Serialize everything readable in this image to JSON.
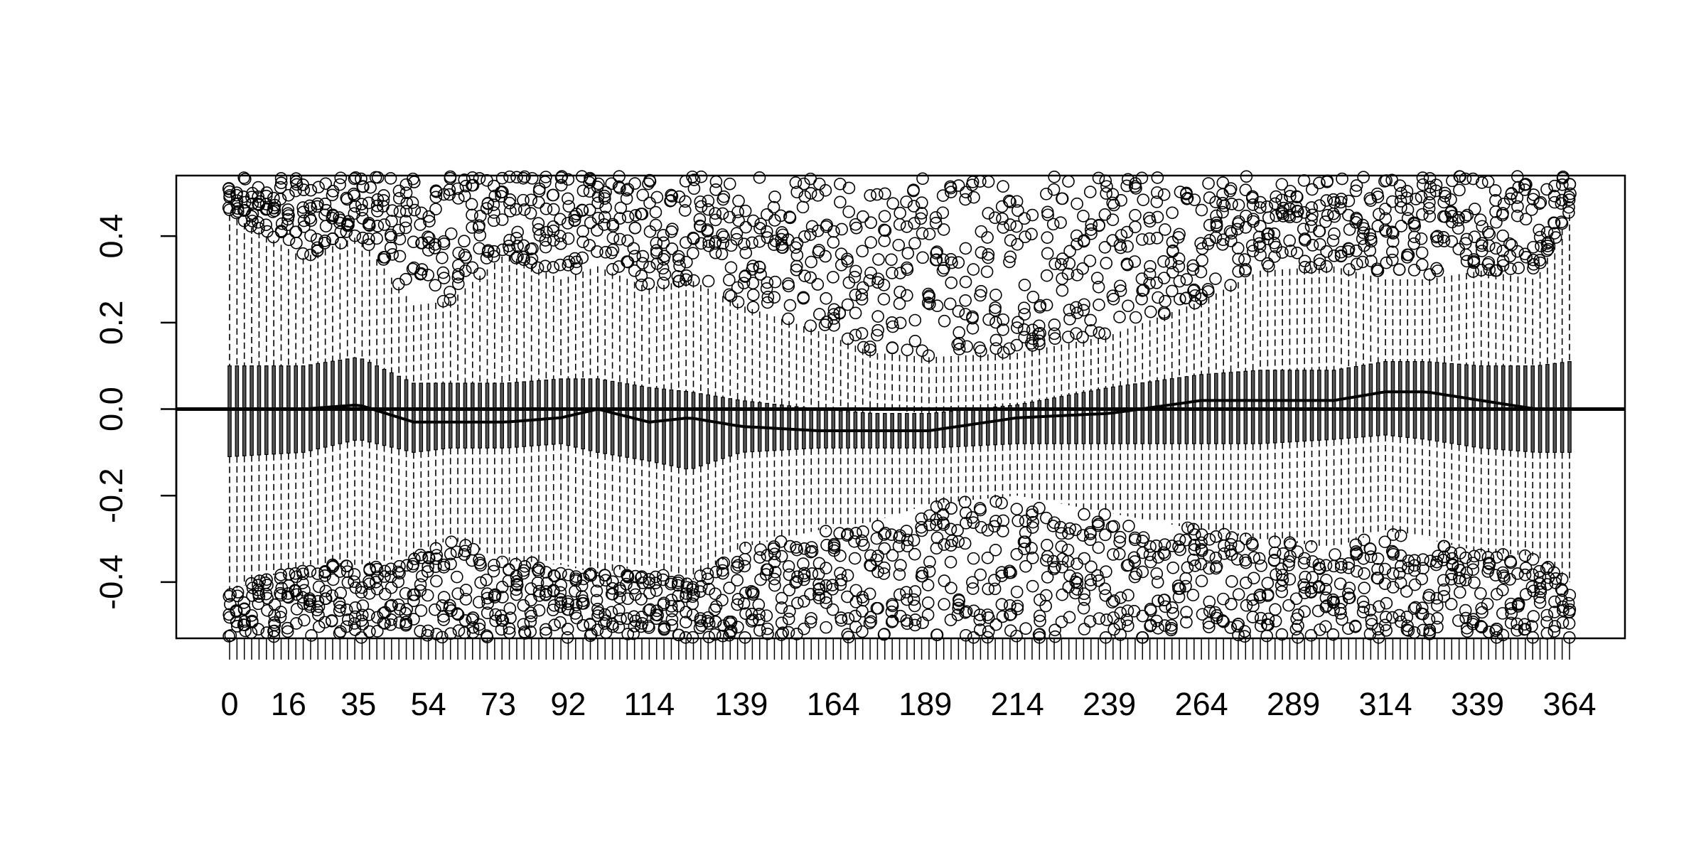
{
  "chart_data": {
    "type": "box",
    "title": "",
    "xlabel": "",
    "ylabel": "",
    "ylim": [
      -0.53,
      0.54
    ],
    "x_range": [
      0,
      364
    ],
    "x_tick_labels": [
      "0",
      "16",
      "35",
      "54",
      "73",
      "92",
      "114",
      "139",
      "164",
      "189",
      "214",
      "239",
      "264",
      "289",
      "314",
      "339",
      "364"
    ],
    "y_tick_labels": [
      "-0.4",
      "-0.2",
      "0.0",
      "0.2",
      "0.4"
    ],
    "y_ticks": [
      -0.4,
      -0.2,
      0.0,
      0.2,
      0.4
    ],
    "reference_line_y": 0.0,
    "grid": false,
    "legend": "none",
    "boxes_every": 2,
    "median_profile": {
      "day": [
        0,
        20,
        35,
        50,
        60,
        75,
        90,
        100,
        114,
        125,
        139,
        160,
        175,
        190,
        214,
        239,
        264,
        280,
        300,
        314,
        325,
        340,
        355,
        364
      ],
      "median": [
        0.0,
        0.0,
        0.01,
        -0.03,
        -0.03,
        -0.03,
        -0.02,
        0.0,
        -0.03,
        -0.02,
        -0.04,
        -0.05,
        -0.05,
        -0.05,
        -0.02,
        -0.01,
        0.02,
        0.02,
        0.02,
        0.04,
        0.04,
        0.02,
        0.0,
        0.0
      ],
      "q1": [
        -0.11,
        -0.1,
        -0.07,
        -0.1,
        -0.09,
        -0.09,
        -0.08,
        -0.1,
        -0.12,
        -0.14,
        -0.1,
        -0.09,
        -0.09,
        -0.09,
        -0.08,
        -0.08,
        -0.08,
        -0.08,
        -0.07,
        -0.06,
        -0.07,
        -0.09,
        -0.1,
        -0.1
      ],
      "q3": [
        0.1,
        0.1,
        0.12,
        0.06,
        0.06,
        0.06,
        0.07,
        0.07,
        0.05,
        0.04,
        0.02,
        0.0,
        -0.01,
        -0.01,
        0.01,
        0.05,
        0.08,
        0.09,
        0.09,
        0.11,
        0.11,
        0.1,
        0.1,
        0.11
      ],
      "upper_whisker": [
        0.45,
        0.35,
        0.4,
        0.24,
        0.25,
        0.36,
        0.3,
        0.33,
        0.28,
        0.3,
        0.24,
        0.18,
        0.13,
        0.12,
        0.13,
        0.17,
        0.25,
        0.32,
        0.33,
        0.3,
        0.3,
        0.32,
        0.3,
        0.45
      ],
      "lower_whisker": [
        -0.42,
        -0.36,
        -0.36,
        -0.34,
        -0.3,
        -0.35,
        -0.36,
        -0.38,
        -0.36,
        -0.4,
        -0.32,
        -0.28,
        -0.26,
        -0.22,
        -0.2,
        -0.24,
        -0.28,
        -0.3,
        -0.32,
        -0.28,
        -0.3,
        -0.33,
        -0.34,
        -0.4
      ]
    }
  }
}
